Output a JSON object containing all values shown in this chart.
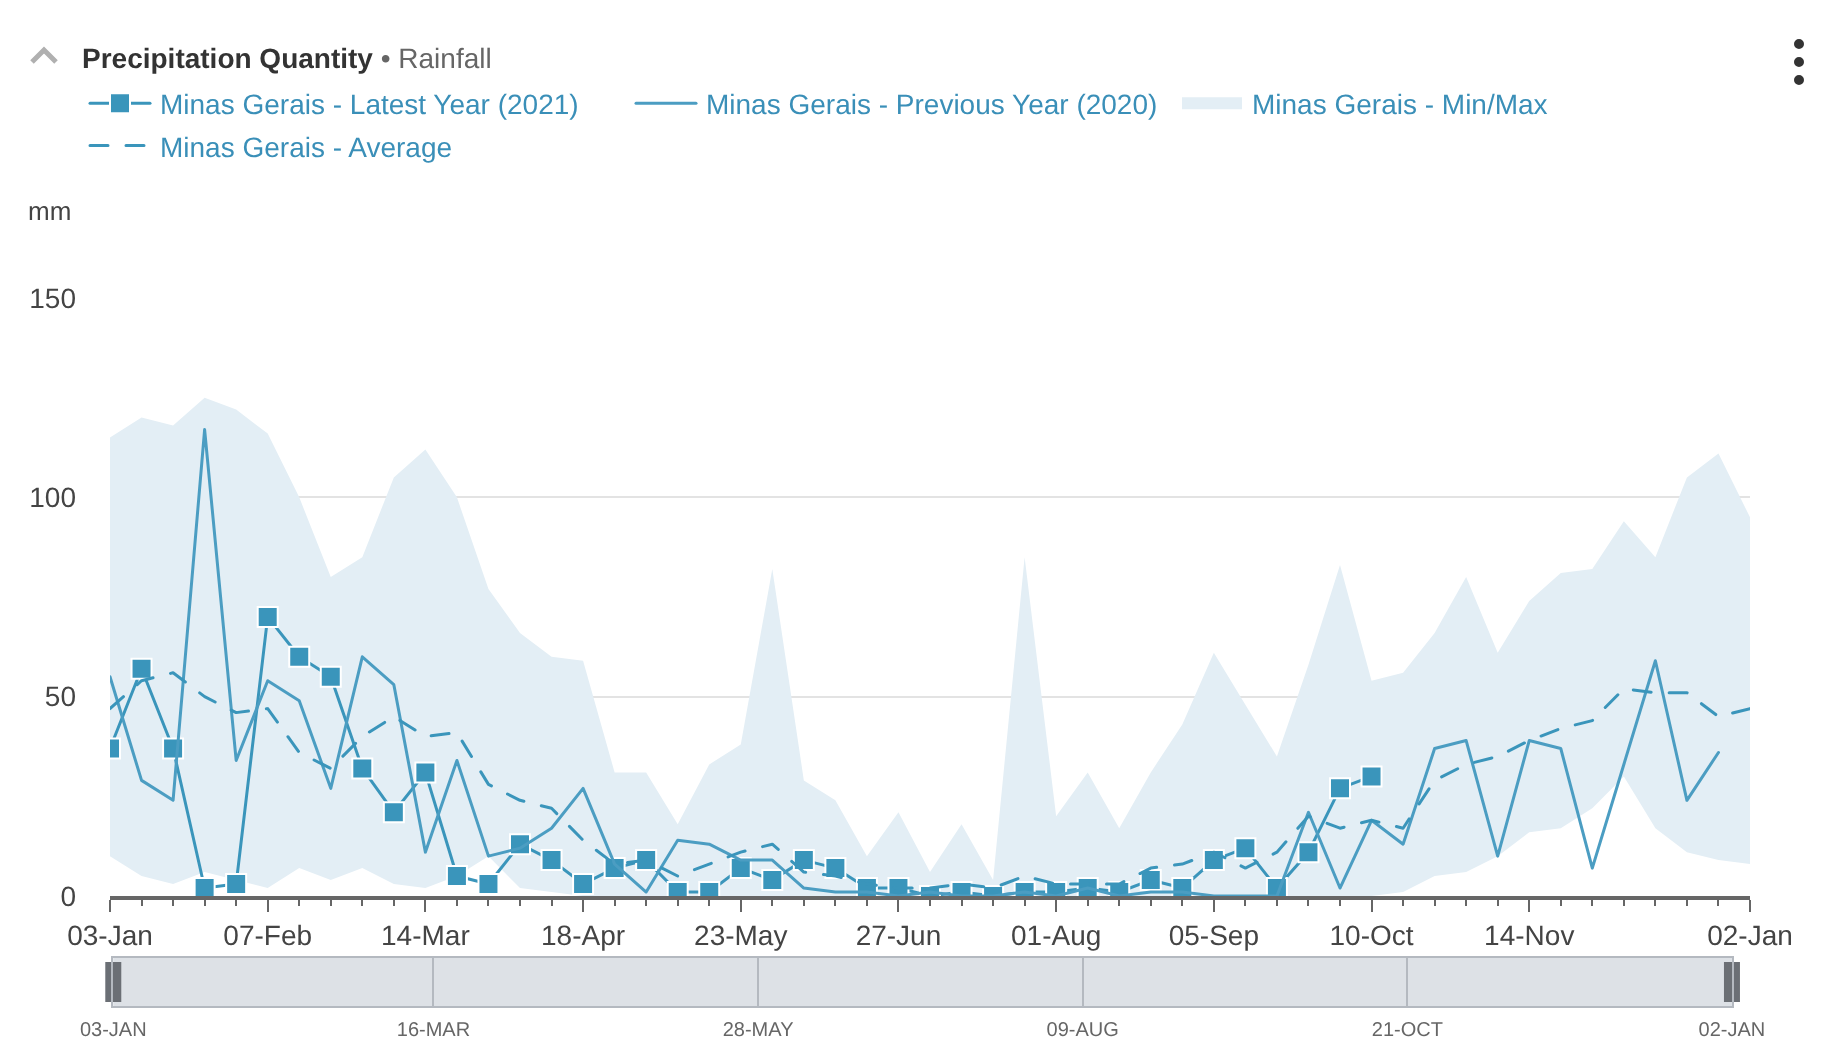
{
  "chart_data": {
    "type": "line",
    "title": "Precipitation Quantity",
    "subtitle": "• Rainfall",
    "ylabel": "mm",
    "x": [
      "2021-01-03",
      "2021-01-10",
      "2021-01-17",
      "2021-01-24",
      "2021-01-31",
      "2021-02-07",
      "2021-02-14",
      "2021-02-21",
      "2021-02-28",
      "2021-03-07",
      "2021-03-14",
      "2021-03-21",
      "2021-03-28",
      "2021-04-04",
      "2021-04-11",
      "2021-04-18",
      "2021-04-25",
      "2021-05-02",
      "2021-05-09",
      "2021-05-16",
      "2021-05-23",
      "2021-05-30",
      "2021-06-06",
      "2021-06-13",
      "2021-06-20",
      "2021-06-27",
      "2021-07-04",
      "2021-07-11",
      "2021-07-18",
      "2021-07-25",
      "2021-08-01",
      "2021-08-08",
      "2021-08-15",
      "2021-08-22",
      "2021-08-29",
      "2021-09-05",
      "2021-09-12",
      "2021-09-19",
      "2021-09-26",
      "2021-10-03",
      "2021-10-10",
      "2021-10-17",
      "2021-10-24",
      "2021-10-31",
      "2021-11-07",
      "2021-11-14",
      "2021-11-21",
      "2021-11-28",
      "2021-12-05",
      "2021-12-12",
      "2021-12-19",
      "2021-12-26",
      "2022-01-02"
    ],
    "xlim": [
      "2021-01-03",
      "2022-01-02"
    ],
    "xticks": [
      {
        "value": "2021-01-03",
        "label": "03-Jan"
      },
      {
        "value": "2021-01-10",
        "label": null
      },
      {
        "value": "2021-01-17",
        "label": null
      },
      {
        "value": "2021-01-24",
        "label": null
      },
      {
        "value": "2021-01-31",
        "label": null
      },
      {
        "value": "2021-02-07",
        "label": "07-Feb"
      },
      {
        "value": "2021-02-14",
        "label": null
      },
      {
        "value": "2021-02-21",
        "label": null
      },
      {
        "value": "2021-02-28",
        "label": null
      },
      {
        "value": "2021-03-07",
        "label": null
      },
      {
        "value": "2021-03-14",
        "label": "14-Mar"
      },
      {
        "value": "2021-03-21",
        "label": null
      },
      {
        "value": "2021-03-28",
        "label": null
      },
      {
        "value": "2021-04-04",
        "label": null
      },
      {
        "value": "2021-04-11",
        "label": null
      },
      {
        "value": "2021-04-18",
        "label": "18-Apr"
      },
      {
        "value": "2021-04-25",
        "label": null
      },
      {
        "value": "2021-05-02",
        "label": null
      },
      {
        "value": "2021-05-09",
        "label": null
      },
      {
        "value": "2021-05-16",
        "label": null
      },
      {
        "value": "2021-05-23",
        "label": "23-May"
      },
      {
        "value": "2021-05-30",
        "label": null
      },
      {
        "value": "2021-06-06",
        "label": null
      },
      {
        "value": "2021-06-13",
        "label": null
      },
      {
        "value": "2021-06-20",
        "label": null
      },
      {
        "value": "2021-06-27",
        "label": "27-Jun"
      },
      {
        "value": "2021-07-04",
        "label": null
      },
      {
        "value": "2021-07-11",
        "label": null
      },
      {
        "value": "2021-07-18",
        "label": null
      },
      {
        "value": "2021-07-25",
        "label": null
      },
      {
        "value": "2021-08-01",
        "label": "01-Aug"
      },
      {
        "value": "2021-08-08",
        "label": null
      },
      {
        "value": "2021-08-15",
        "label": null
      },
      {
        "value": "2021-08-22",
        "label": null
      },
      {
        "value": "2021-08-29",
        "label": null
      },
      {
        "value": "2021-09-05",
        "label": "05-Sep"
      },
      {
        "value": "2021-09-12",
        "label": null
      },
      {
        "value": "2021-09-19",
        "label": null
      },
      {
        "value": "2021-09-26",
        "label": null
      },
      {
        "value": "2021-10-03",
        "label": null
      },
      {
        "value": "2021-10-10",
        "label": "10-Oct"
      },
      {
        "value": "2021-10-17",
        "label": null
      },
      {
        "value": "2021-10-24",
        "label": null
      },
      {
        "value": "2021-10-31",
        "label": null
      },
      {
        "value": "2021-11-07",
        "label": null
      },
      {
        "value": "2021-11-14",
        "label": "14-Nov"
      },
      {
        "value": "2021-11-21",
        "label": null
      },
      {
        "value": "2021-11-28",
        "label": null
      },
      {
        "value": "2021-12-05",
        "label": null
      },
      {
        "value": "2021-12-12",
        "label": null
      },
      {
        "value": "2021-12-19",
        "label": null
      },
      {
        "value": "2021-12-26",
        "label": null
      },
      {
        "value": "2022-01-02",
        "label": "02-Jan"
      }
    ],
    "ylim": [
      0,
      150
    ],
    "yticks": [
      0,
      50,
      100,
      150
    ],
    "grid": "y",
    "legend": "top left",
    "series": [
      {
        "name": "Minas Gerais - Latest Year (2021)",
        "color": "#3a95bb",
        "marker": "square",
        "line_style": "solid",
        "values": [
          37,
          57,
          37,
          2,
          3,
          70,
          60,
          55,
          32,
          21,
          31,
          5,
          3,
          13,
          9,
          3,
          7,
          9,
          1,
          1,
          7,
          4,
          9,
          7,
          2,
          2,
          0,
          1,
          0,
          1,
          1,
          2,
          1,
          4,
          2,
          9,
          12,
          2,
          11,
          27,
          30,
          null,
          null,
          null,
          null,
          null,
          null,
          null,
          null,
          null,
          null,
          null,
          null
        ]
      },
      {
        "name": "Minas Gerais - Previous Year (2020)",
        "color": "#4b9dc2",
        "line_style": "solid",
        "values": [
          55,
          29,
          24,
          117,
          34,
          54,
          49,
          27,
          60,
          53,
          11,
          34,
          10,
          12,
          17,
          27,
          8,
          1,
          14,
          13,
          9,
          9,
          2,
          1,
          1,
          0,
          1,
          0,
          0,
          1,
          0,
          2,
          0,
          1,
          1,
          0,
          0,
          0,
          21,
          2,
          19,
          13,
          37,
          39,
          10,
          39,
          37,
          7,
          33,
          59,
          24,
          36,
          null
        ]
      },
      {
        "name": "Minas Gerais - Min/Max",
        "type": "area",
        "color": "#e3eef5",
        "values": [
          null,
          null,
          null,
          null,
          null,
          null,
          null,
          null,
          null,
          null,
          null,
          null,
          null,
          null,
          null,
          null,
          null,
          null,
          null,
          null,
          null,
          null,
          null,
          null,
          null,
          null,
          null,
          null,
          null,
          null,
          null,
          null,
          null,
          null,
          null,
          null,
          null,
          null,
          null,
          null,
          null,
          null,
          null,
          null,
          null,
          null,
          null,
          null,
          null,
          null,
          null,
          null,
          null
        ],
        "lower": [
          10,
          5,
          3,
          6,
          4,
          2,
          7,
          4,
          7,
          3,
          2,
          5,
          10,
          2,
          1,
          0,
          0,
          0,
          0,
          0,
          0,
          0,
          0,
          0,
          0,
          0,
          0,
          0,
          0,
          0,
          0,
          0,
          0,
          0,
          0,
          0,
          0,
          0,
          0,
          0,
          0,
          1,
          5,
          6,
          10,
          16,
          17,
          22,
          30,
          17,
          11,
          9,
          8
        ],
        "upper": [
          115,
          120,
          118,
          125,
          122,
          116,
          100,
          80,
          85,
          105,
          112,
          100,
          77,
          66,
          60,
          59,
          31,
          31,
          18,
          33,
          38,
          82,
          29,
          24,
          10,
          21,
          6,
          18,
          4,
          85,
          20,
          31,
          17,
          31,
          43,
          61,
          48,
          35,
          58,
          83,
          54,
          56,
          66,
          80,
          61,
          74,
          81,
          82,
          94,
          85,
          105,
          111,
          95
        ]
      },
      {
        "name": "Minas Gerais - Average",
        "color": "#3a95bb",
        "line_style": "dashed",
        "values": [
          47,
          54,
          56,
          50,
          46,
          47,
          36,
          32,
          40,
          45,
          40,
          41,
          28,
          24,
          22,
          14,
          8,
          9,
          5,
          8,
          11,
          13,
          6,
          5,
          3,
          2,
          2,
          3,
          2,
          5,
          3,
          3,
          3,
          7,
          8,
          11,
          7,
          11,
          20,
          17,
          19,
          17,
          29,
          33,
          35,
          39,
          42,
          44,
          52,
          51,
          51,
          45,
          47
        ]
      }
    ],
    "x2lim": [
      "2021-01-03",
      "2022-01-02"
    ],
    "x2ticks": [
      {
        "value": "2021-01-03",
        "label": "03-JAN"
      },
      {
        "value": "2021-03-16",
        "label": "16-MAR"
      },
      {
        "value": "2021-05-28",
        "label": "28-MAY"
      },
      {
        "value": "2021-08-09",
        "label": "09-AUG"
      },
      {
        "value": "2021-10-21",
        "label": "21-OCT"
      },
      {
        "value": "2022-01-02",
        "label": "02-JAN"
      }
    ]
  }
}
